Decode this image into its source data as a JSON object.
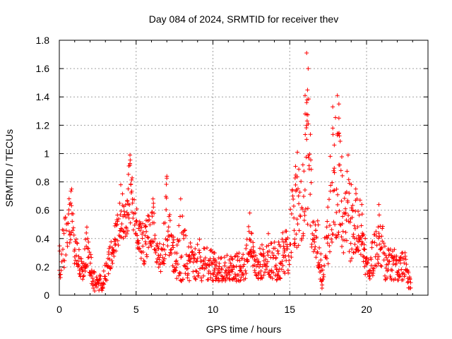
{
  "chart_data": {
    "type": "scatter",
    "title": "Day 084 of 2024, SRMTID for receiver thev",
    "xlabel": "GPS time / hours",
    "ylabel": "SRMTID / TECUs",
    "xlim": [
      0,
      24
    ],
    "ylim": [
      0,
      1.8
    ],
    "xticks": [
      0,
      5,
      10,
      15,
      20
    ],
    "yticks": [
      0,
      0.2,
      0.4,
      0.6,
      0.8,
      1,
      1.2,
      1.4,
      1.6,
      1.8
    ],
    "xtick_labels": [
      "0",
      "5",
      "10",
      "15",
      "20"
    ],
    "ytick_labels": [
      "0",
      "0.2",
      "0.4",
      "0.6",
      "0.8",
      "1",
      "1.2",
      "1.4",
      "1.6",
      "1.8"
    ],
    "grid": true,
    "marker": "+",
    "color": "#ff0000",
    "x_end": 22.9,
    "envelope": [
      [
        0.0,
        0.1,
        0.35
      ],
      [
        0.3,
        0.1,
        0.55
      ],
      [
        0.5,
        0.3,
        0.65
      ],
      [
        0.8,
        0.4,
        0.75
      ],
      [
        1.0,
        0.2,
        0.45
      ],
      [
        1.3,
        0.15,
        0.35
      ],
      [
        1.5,
        0.1,
        0.3
      ],
      [
        1.8,
        0.2,
        0.55
      ],
      [
        2.1,
        0.05,
        0.25
      ],
      [
        2.4,
        0.03,
        0.15
      ],
      [
        2.8,
        0.03,
        0.15
      ],
      [
        3.1,
        0.1,
        0.3
      ],
      [
        3.4,
        0.2,
        0.45
      ],
      [
        3.7,
        0.3,
        0.55
      ],
      [
        4.0,
        0.4,
        0.78
      ],
      [
        4.3,
        0.4,
        0.65
      ],
      [
        4.6,
        0.5,
        0.99
      ],
      [
        4.9,
        0.4,
        0.7
      ],
      [
        5.2,
        0.3,
        0.55
      ],
      [
        5.5,
        0.2,
        0.5
      ],
      [
        5.8,
        0.3,
        0.6
      ],
      [
        6.1,
        0.35,
        0.68
      ],
      [
        6.4,
        0.2,
        0.4
      ],
      [
        6.7,
        0.15,
        0.35
      ],
      [
        7.0,
        0.3,
        0.84
      ],
      [
        7.3,
        0.25,
        0.55
      ],
      [
        7.6,
        0.05,
        0.3
      ],
      [
        7.9,
        0.1,
        0.68
      ],
      [
        8.3,
        0.1,
        0.4
      ],
      [
        8.7,
        0.1,
        0.35
      ],
      [
        9.1,
        0.1,
        0.4
      ],
      [
        9.6,
        0.1,
        0.35
      ],
      [
        10.1,
        0.1,
        0.3
      ],
      [
        10.6,
        0.1,
        0.28
      ],
      [
        11.1,
        0.08,
        0.3
      ],
      [
        11.6,
        0.1,
        0.3
      ],
      [
        12.1,
        0.1,
        0.3
      ],
      [
        12.4,
        0.3,
        0.58
      ],
      [
        12.7,
        0.15,
        0.35
      ],
      [
        13.1,
        0.1,
        0.35
      ],
      [
        13.5,
        0.15,
        0.45
      ],
      [
        13.9,
        0.1,
        0.4
      ],
      [
        14.3,
        0.1,
        0.4
      ],
      [
        14.6,
        0.15,
        0.5
      ],
      [
        14.9,
        0.15,
        0.45
      ],
      [
        15.2,
        0.3,
        0.8
      ],
      [
        15.5,
        0.3,
        1.0
      ],
      [
        15.8,
        0.4,
        0.9
      ],
      [
        16.0,
        0.4,
        1.1
      ],
      [
        16.2,
        0.45,
        1.71
      ],
      [
        16.5,
        0.3,
        0.6
      ],
      [
        16.8,
        0.2,
        0.6
      ],
      [
        17.1,
        0.05,
        0.2
      ],
      [
        17.4,
        0.15,
        0.55
      ],
      [
        17.7,
        0.35,
        1.35
      ],
      [
        18.0,
        0.4,
        1.25
      ],
      [
        18.2,
        0.4,
        1.41
      ],
      [
        18.5,
        0.25,
        0.75
      ],
      [
        18.8,
        0.2,
        0.99
      ],
      [
        19.1,
        0.25,
        0.8
      ],
      [
        19.4,
        0.3,
        0.72
      ],
      [
        19.7,
        0.25,
        0.65
      ],
      [
        20.0,
        0.1,
        0.3
      ],
      [
        20.3,
        0.1,
        0.35
      ],
      [
        20.6,
        0.2,
        0.5
      ],
      [
        20.9,
        0.2,
        0.64
      ],
      [
        21.2,
        0.1,
        0.35
      ],
      [
        21.6,
        0.1,
        0.35
      ],
      [
        22.0,
        0.1,
        0.3
      ],
      [
        22.4,
        0.1,
        0.32
      ],
      [
        22.7,
        0.05,
        0.2
      ],
      [
        22.9,
        0.05,
        0.12
      ]
    ],
    "peak_points": [
      [
        0.8,
        0.75
      ],
      [
        4.0,
        0.78
      ],
      [
        4.6,
        0.99
      ],
      [
        4.6,
        0.93
      ],
      [
        6.1,
        0.68
      ],
      [
        7.0,
        0.84
      ],
      [
        7.9,
        0.68
      ],
      [
        12.4,
        0.58
      ],
      [
        15.5,
        1.01
      ],
      [
        16.1,
        1.71
      ],
      [
        16.2,
        1.6
      ],
      [
        16.0,
        1.41
      ],
      [
        16.1,
        1.36
      ],
      [
        16.0,
        1.28
      ],
      [
        16.1,
        1.2
      ],
      [
        16.1,
        1.1
      ],
      [
        17.8,
        1.33
      ],
      [
        17.8,
        1.18
      ],
      [
        17.9,
        1.06
      ],
      [
        18.1,
        1.41
      ],
      [
        18.2,
        1.35
      ],
      [
        18.2,
        1.25
      ],
      [
        18.1,
        1.13
      ],
      [
        18.8,
        0.99
      ],
      [
        18.2,
        0.92
      ],
      [
        19.3,
        0.75
      ],
      [
        20.8,
        0.64
      ],
      [
        22.5,
        0.3
      ],
      [
        2.3,
        0.03
      ],
      [
        17.1,
        0.05
      ]
    ]
  }
}
